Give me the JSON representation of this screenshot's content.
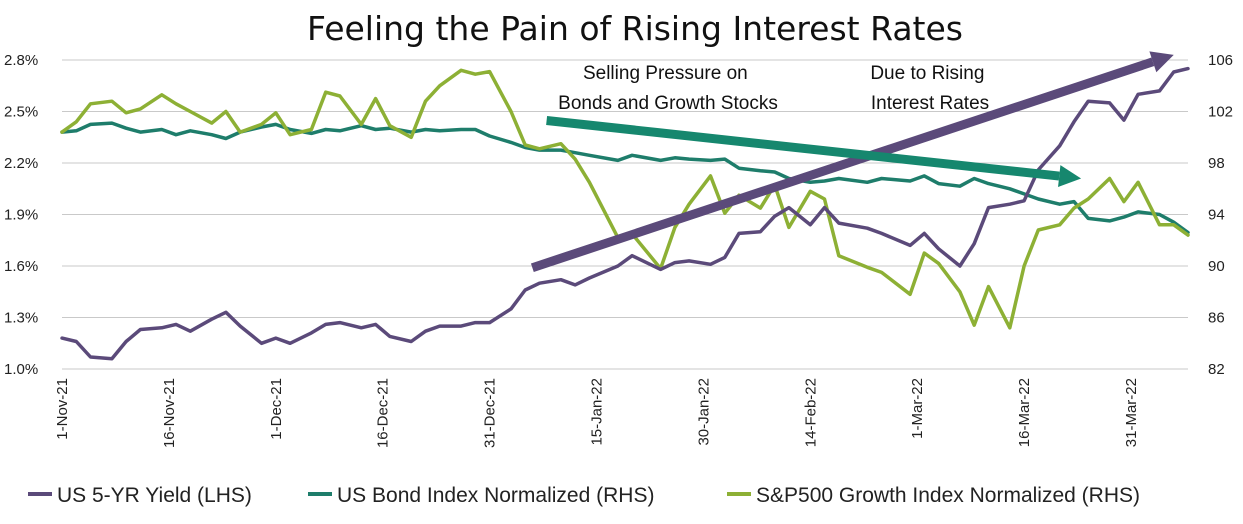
{
  "chart_data": {
    "type": "line",
    "title": "Feeling the Pain of Rising Interest Rates",
    "xlabel": "",
    "ylabel_left": "",
    "ylabel_right": "",
    "x_tick_labels": [
      "1-Nov-21",
      "16-Nov-21",
      "1-Dec-21",
      "16-Dec-21",
      "31-Dec-21",
      "15-Jan-22",
      "30-Jan-22",
      "14-Feb-22",
      "1-Mar-22",
      "16-Mar-22",
      "31-Mar-22"
    ],
    "x_tick_dates": [
      "2021-11-01",
      "2021-11-16",
      "2021-12-01",
      "2021-12-16",
      "2021-12-31",
      "2022-01-15",
      "2022-01-30",
      "2022-02-14",
      "2022-03-01",
      "2022-03-16",
      "2022-03-31"
    ],
    "x_range": [
      "2021-11-01",
      "2022-04-08"
    ],
    "left_axis": {
      "ylim": [
        1.0,
        2.8
      ],
      "ticks": [
        1.0,
        1.3,
        1.6,
        1.9,
        2.2,
        2.5,
        2.8
      ],
      "tick_labels": [
        "1.0%",
        "1.3%",
        "1.6%",
        "1.9%",
        "2.2%",
        "2.5%",
        "2.8%"
      ]
    },
    "right_axis": {
      "ylim": [
        82,
        106
      ],
      "ticks": [
        82,
        86,
        90,
        94,
        98,
        102,
        106
      ],
      "tick_labels": [
        "82",
        "86",
        "90",
        "94",
        "98",
        "102",
        "106"
      ]
    },
    "grid": "horizontal",
    "legend_position": "bottom",
    "series": [
      {
        "name": "US 5-YR Yield (LHS)",
        "axis": "left",
        "color": "#5b4a7a",
        "x": [
          "2021-11-01",
          "2021-11-03",
          "2021-11-05",
          "2021-11-08",
          "2021-11-10",
          "2021-11-12",
          "2021-11-15",
          "2021-11-17",
          "2021-11-19",
          "2021-11-22",
          "2021-11-24",
          "2021-11-26",
          "2021-11-29",
          "2021-12-01",
          "2021-12-03",
          "2021-12-06",
          "2021-12-08",
          "2021-12-10",
          "2021-12-13",
          "2021-12-15",
          "2021-12-17",
          "2021-12-20",
          "2021-12-22",
          "2021-12-24",
          "2021-12-27",
          "2021-12-29",
          "2021-12-31",
          "2022-01-03",
          "2022-01-05",
          "2022-01-07",
          "2022-01-10",
          "2022-01-12",
          "2022-01-14",
          "2022-01-18",
          "2022-01-20",
          "2022-01-24",
          "2022-01-26",
          "2022-01-28",
          "2022-01-31",
          "2022-02-02",
          "2022-02-04",
          "2022-02-07",
          "2022-02-09",
          "2022-02-11",
          "2022-02-14",
          "2022-02-16",
          "2022-02-18",
          "2022-02-22",
          "2022-02-24",
          "2022-02-28",
          "2022-03-02",
          "2022-03-04",
          "2022-03-07",
          "2022-03-09",
          "2022-03-11",
          "2022-03-14",
          "2022-03-16",
          "2022-03-18",
          "2022-03-21",
          "2022-03-23",
          "2022-03-25",
          "2022-03-28",
          "2022-03-30",
          "2022-04-01",
          "2022-04-04",
          "2022-04-06",
          "2022-04-08"
        ],
        "values": [
          1.18,
          1.16,
          1.07,
          1.06,
          1.16,
          1.23,
          1.24,
          1.26,
          1.22,
          1.29,
          1.33,
          1.25,
          1.15,
          1.18,
          1.15,
          1.21,
          1.26,
          1.27,
          1.24,
          1.26,
          1.19,
          1.16,
          1.22,
          1.25,
          1.25,
          1.27,
          1.27,
          1.35,
          1.46,
          1.5,
          1.52,
          1.49,
          1.53,
          1.6,
          1.66,
          1.58,
          1.62,
          1.63,
          1.61,
          1.65,
          1.79,
          1.8,
          1.89,
          1.94,
          1.84,
          1.94,
          1.85,
          1.82,
          1.79,
          1.72,
          1.79,
          1.7,
          1.6,
          1.73,
          1.94,
          1.96,
          1.98,
          2.16,
          2.3,
          2.44,
          2.56,
          2.55,
          2.45,
          2.6,
          2.62,
          2.73,
          2.75
        ]
      },
      {
        "name": "US Bond Index Normalized (RHS)",
        "axis": "right",
        "color": "#1e7d6b",
        "x": [
          "2021-11-01",
          "2021-11-03",
          "2021-11-05",
          "2021-11-08",
          "2021-11-10",
          "2021-11-12",
          "2021-11-15",
          "2021-11-17",
          "2021-11-19",
          "2021-11-22",
          "2021-11-24",
          "2021-11-26",
          "2021-11-29",
          "2021-12-01",
          "2021-12-03",
          "2021-12-06",
          "2021-12-08",
          "2021-12-10",
          "2021-12-13",
          "2021-12-15",
          "2021-12-17",
          "2021-12-20",
          "2021-12-22",
          "2021-12-24",
          "2021-12-27",
          "2021-12-29",
          "2021-12-31",
          "2022-01-03",
          "2022-01-05",
          "2022-01-07",
          "2022-01-10",
          "2022-01-12",
          "2022-01-14",
          "2022-01-18",
          "2022-01-20",
          "2022-01-24",
          "2022-01-26",
          "2022-01-28",
          "2022-01-31",
          "2022-02-02",
          "2022-02-04",
          "2022-02-07",
          "2022-02-09",
          "2022-02-11",
          "2022-02-14",
          "2022-02-16",
          "2022-02-18",
          "2022-02-22",
          "2022-02-24",
          "2022-02-28",
          "2022-03-02",
          "2022-03-04",
          "2022-03-07",
          "2022-03-09",
          "2022-03-11",
          "2022-03-14",
          "2022-03-16",
          "2022-03-18",
          "2022-03-21",
          "2022-03-23",
          "2022-03-25",
          "2022-03-28",
          "2022-03-30",
          "2022-04-01",
          "2022-04-04",
          "2022-04-06",
          "2022-04-08"
        ],
        "values": [
          100.4,
          100.5,
          101.0,
          101.1,
          100.7,
          100.4,
          100.6,
          100.2,
          100.5,
          100.2,
          99.9,
          100.4,
          100.8,
          101.0,
          100.6,
          100.3,
          100.6,
          100.5,
          100.9,
          100.6,
          100.7,
          100.4,
          100.6,
          100.5,
          100.6,
          100.6,
          100.1,
          99.6,
          99.2,
          99.0,
          99.0,
          98.8,
          98.6,
          98.2,
          98.6,
          98.2,
          98.4,
          98.3,
          98.2,
          98.3,
          97.6,
          97.4,
          97.3,
          96.8,
          96.5,
          96.6,
          96.8,
          96.5,
          96.8,
          96.6,
          97.0,
          96.4,
          96.2,
          96.8,
          96.4,
          96.0,
          95.6,
          95.2,
          94.8,
          95.0,
          93.7,
          93.5,
          93.8,
          94.2,
          94.0,
          93.4,
          92.6
        ]
      },
      {
        "name": "S&P500 Growth Index Normalized (RHS)",
        "axis": "right",
        "color": "#8db035",
        "x": [
          "2021-11-01",
          "2021-11-03",
          "2021-11-05",
          "2021-11-08",
          "2021-11-10",
          "2021-11-12",
          "2021-11-15",
          "2021-11-17",
          "2021-11-19",
          "2021-11-22",
          "2021-11-24",
          "2021-11-26",
          "2021-11-29",
          "2021-12-01",
          "2021-12-03",
          "2021-12-06",
          "2021-12-08",
          "2021-12-10",
          "2021-12-13",
          "2021-12-15",
          "2021-12-17",
          "2021-12-20",
          "2021-12-22",
          "2021-12-24",
          "2021-12-27",
          "2021-12-29",
          "2021-12-31",
          "2022-01-03",
          "2022-01-05",
          "2022-01-07",
          "2022-01-10",
          "2022-01-12",
          "2022-01-14",
          "2022-01-18",
          "2022-01-20",
          "2022-01-24",
          "2022-01-26",
          "2022-01-28",
          "2022-01-31",
          "2022-02-02",
          "2022-02-04",
          "2022-02-07",
          "2022-02-09",
          "2022-02-11",
          "2022-02-14",
          "2022-02-16",
          "2022-02-18",
          "2022-02-22",
          "2022-02-24",
          "2022-02-28",
          "2022-03-02",
          "2022-03-04",
          "2022-03-07",
          "2022-03-09",
          "2022-03-11",
          "2022-03-14",
          "2022-03-16",
          "2022-03-18",
          "2022-03-21",
          "2022-03-23",
          "2022-03-25",
          "2022-03-28",
          "2022-03-30",
          "2022-04-01",
          "2022-04-04",
          "2022-04-06",
          "2022-04-08"
        ],
        "values": [
          100.4,
          101.2,
          102.6,
          102.8,
          101.9,
          102.2,
          103.3,
          102.6,
          102.0,
          101.1,
          102.0,
          100.4,
          101.0,
          101.9,
          100.2,
          100.6,
          103.5,
          103.2,
          101.0,
          103.0,
          100.9,
          100.0,
          102.8,
          104.0,
          105.2,
          104.9,
          105.1,
          102.0,
          99.4,
          99.1,
          99.5,
          98.3,
          96.5,
          92.2,
          92.5,
          89.8,
          93.0,
          94.8,
          97.0,
          94.1,
          95.5,
          94.5,
          96.3,
          93.0,
          95.8,
          95.2,
          90.8,
          89.9,
          89.5,
          87.8,
          91.0,
          90.2,
          88.0,
          85.4,
          88.4,
          85.2,
          90.0,
          92.8,
          93.2,
          94.5,
          95.2,
          96.8,
          95.0,
          96.5,
          93.2,
          93.2,
          92.4
        ]
      }
    ],
    "annotations": [
      {
        "lines": [
          "Selling Pressure on",
          "Bonds and Growth Stocks"
        ]
      },
      {
        "lines": [
          "Due to Rising",
          "Interest Rates"
        ]
      }
    ],
    "arrows": [
      {
        "color": "#5b4a7a",
        "from": {
          "x": "2022-01-06",
          "y_axis": "left",
          "y": 1.59
        },
        "to": {
          "x": "2022-04-06",
          "y_axis": "left",
          "y": 2.83
        }
      },
      {
        "color": "#16876e",
        "from": {
          "x": "2022-01-08",
          "y_axis": "right",
          "y": 101.3
        },
        "to": {
          "x": "2022-03-24",
          "y_axis": "right",
          "y": 96.8
        }
      }
    ]
  }
}
